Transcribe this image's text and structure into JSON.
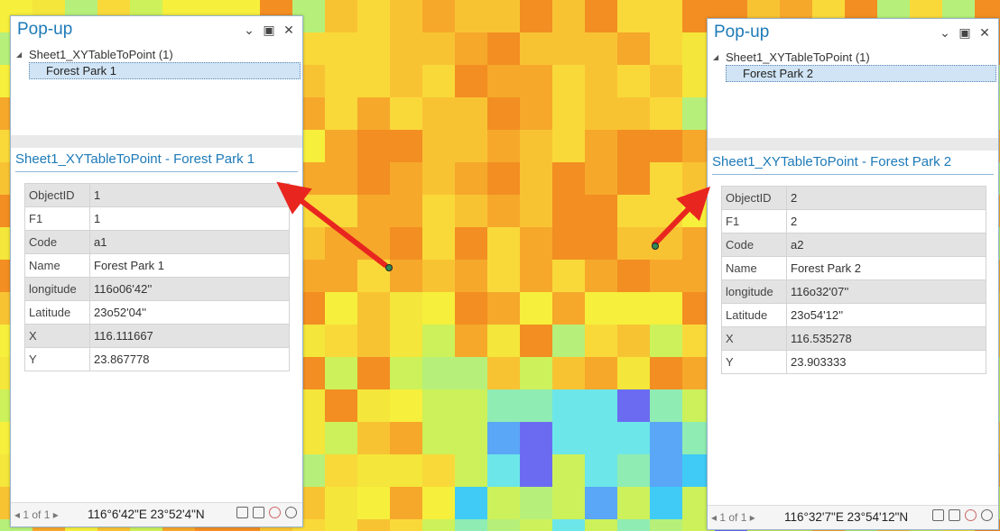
{
  "popups": {
    "left": {
      "title": "Pop-up",
      "layer_name": "Sheet1_XYTableToPoint (1)",
      "feature_name": "Forest Park 1",
      "detail_title": "Sheet1_XYTableToPoint - Forest Park 1",
      "attributes": [
        {
          "field": "ObjectID",
          "value": "1"
        },
        {
          "field": "F1",
          "value": "1"
        },
        {
          "field": "Code",
          "value": "a1"
        },
        {
          "field": "Name",
          "value": "Forest Park 1"
        },
        {
          "field": "longitude",
          "value": "116o06'42''"
        },
        {
          "field": "Latitude",
          "value": "23o52'04''"
        },
        {
          "field": "X",
          "value": "116.111667"
        },
        {
          "field": "Y",
          "value": "23.867778"
        }
      ],
      "pager": "◂ 1 of 1 ▸",
      "coordinates": "116°6'42\"E 23°52'4\"N"
    },
    "right": {
      "title": "Pop-up",
      "layer_name": "Sheet1_XYTableToPoint (1)",
      "feature_name": "Forest Park 2",
      "detail_title": "Sheet1_XYTableToPoint - Forest Park 2",
      "attributes": [
        {
          "field": "ObjectID",
          "value": "2"
        },
        {
          "field": "F1",
          "value": "2"
        },
        {
          "field": "Code",
          "value": "a2"
        },
        {
          "field": "Name",
          "value": "Forest Park 2"
        },
        {
          "field": "longitude",
          "value": "116o32'07''"
        },
        {
          "field": "Latitude",
          "value": "23o54'12''"
        },
        {
          "field": "X",
          "value": "116.535278"
        },
        {
          "field": "Y",
          "value": "23.903333"
        }
      ],
      "pager": "◂ 1 of 1 ▸",
      "coordinates": "116°32'7\"E 23°54'12\"N"
    }
  },
  "window_controls": {
    "collapse": "⌄",
    "restore": "▣",
    "close": "✕"
  },
  "colors": {
    "title_blue": "#1d7ab8",
    "arrow_red": "#e8261f",
    "point_green": "#2e8b57"
  },
  "icons": [
    "print-icon",
    "zoom-to-icon",
    "flash-icon",
    "pan-to-icon"
  ]
}
